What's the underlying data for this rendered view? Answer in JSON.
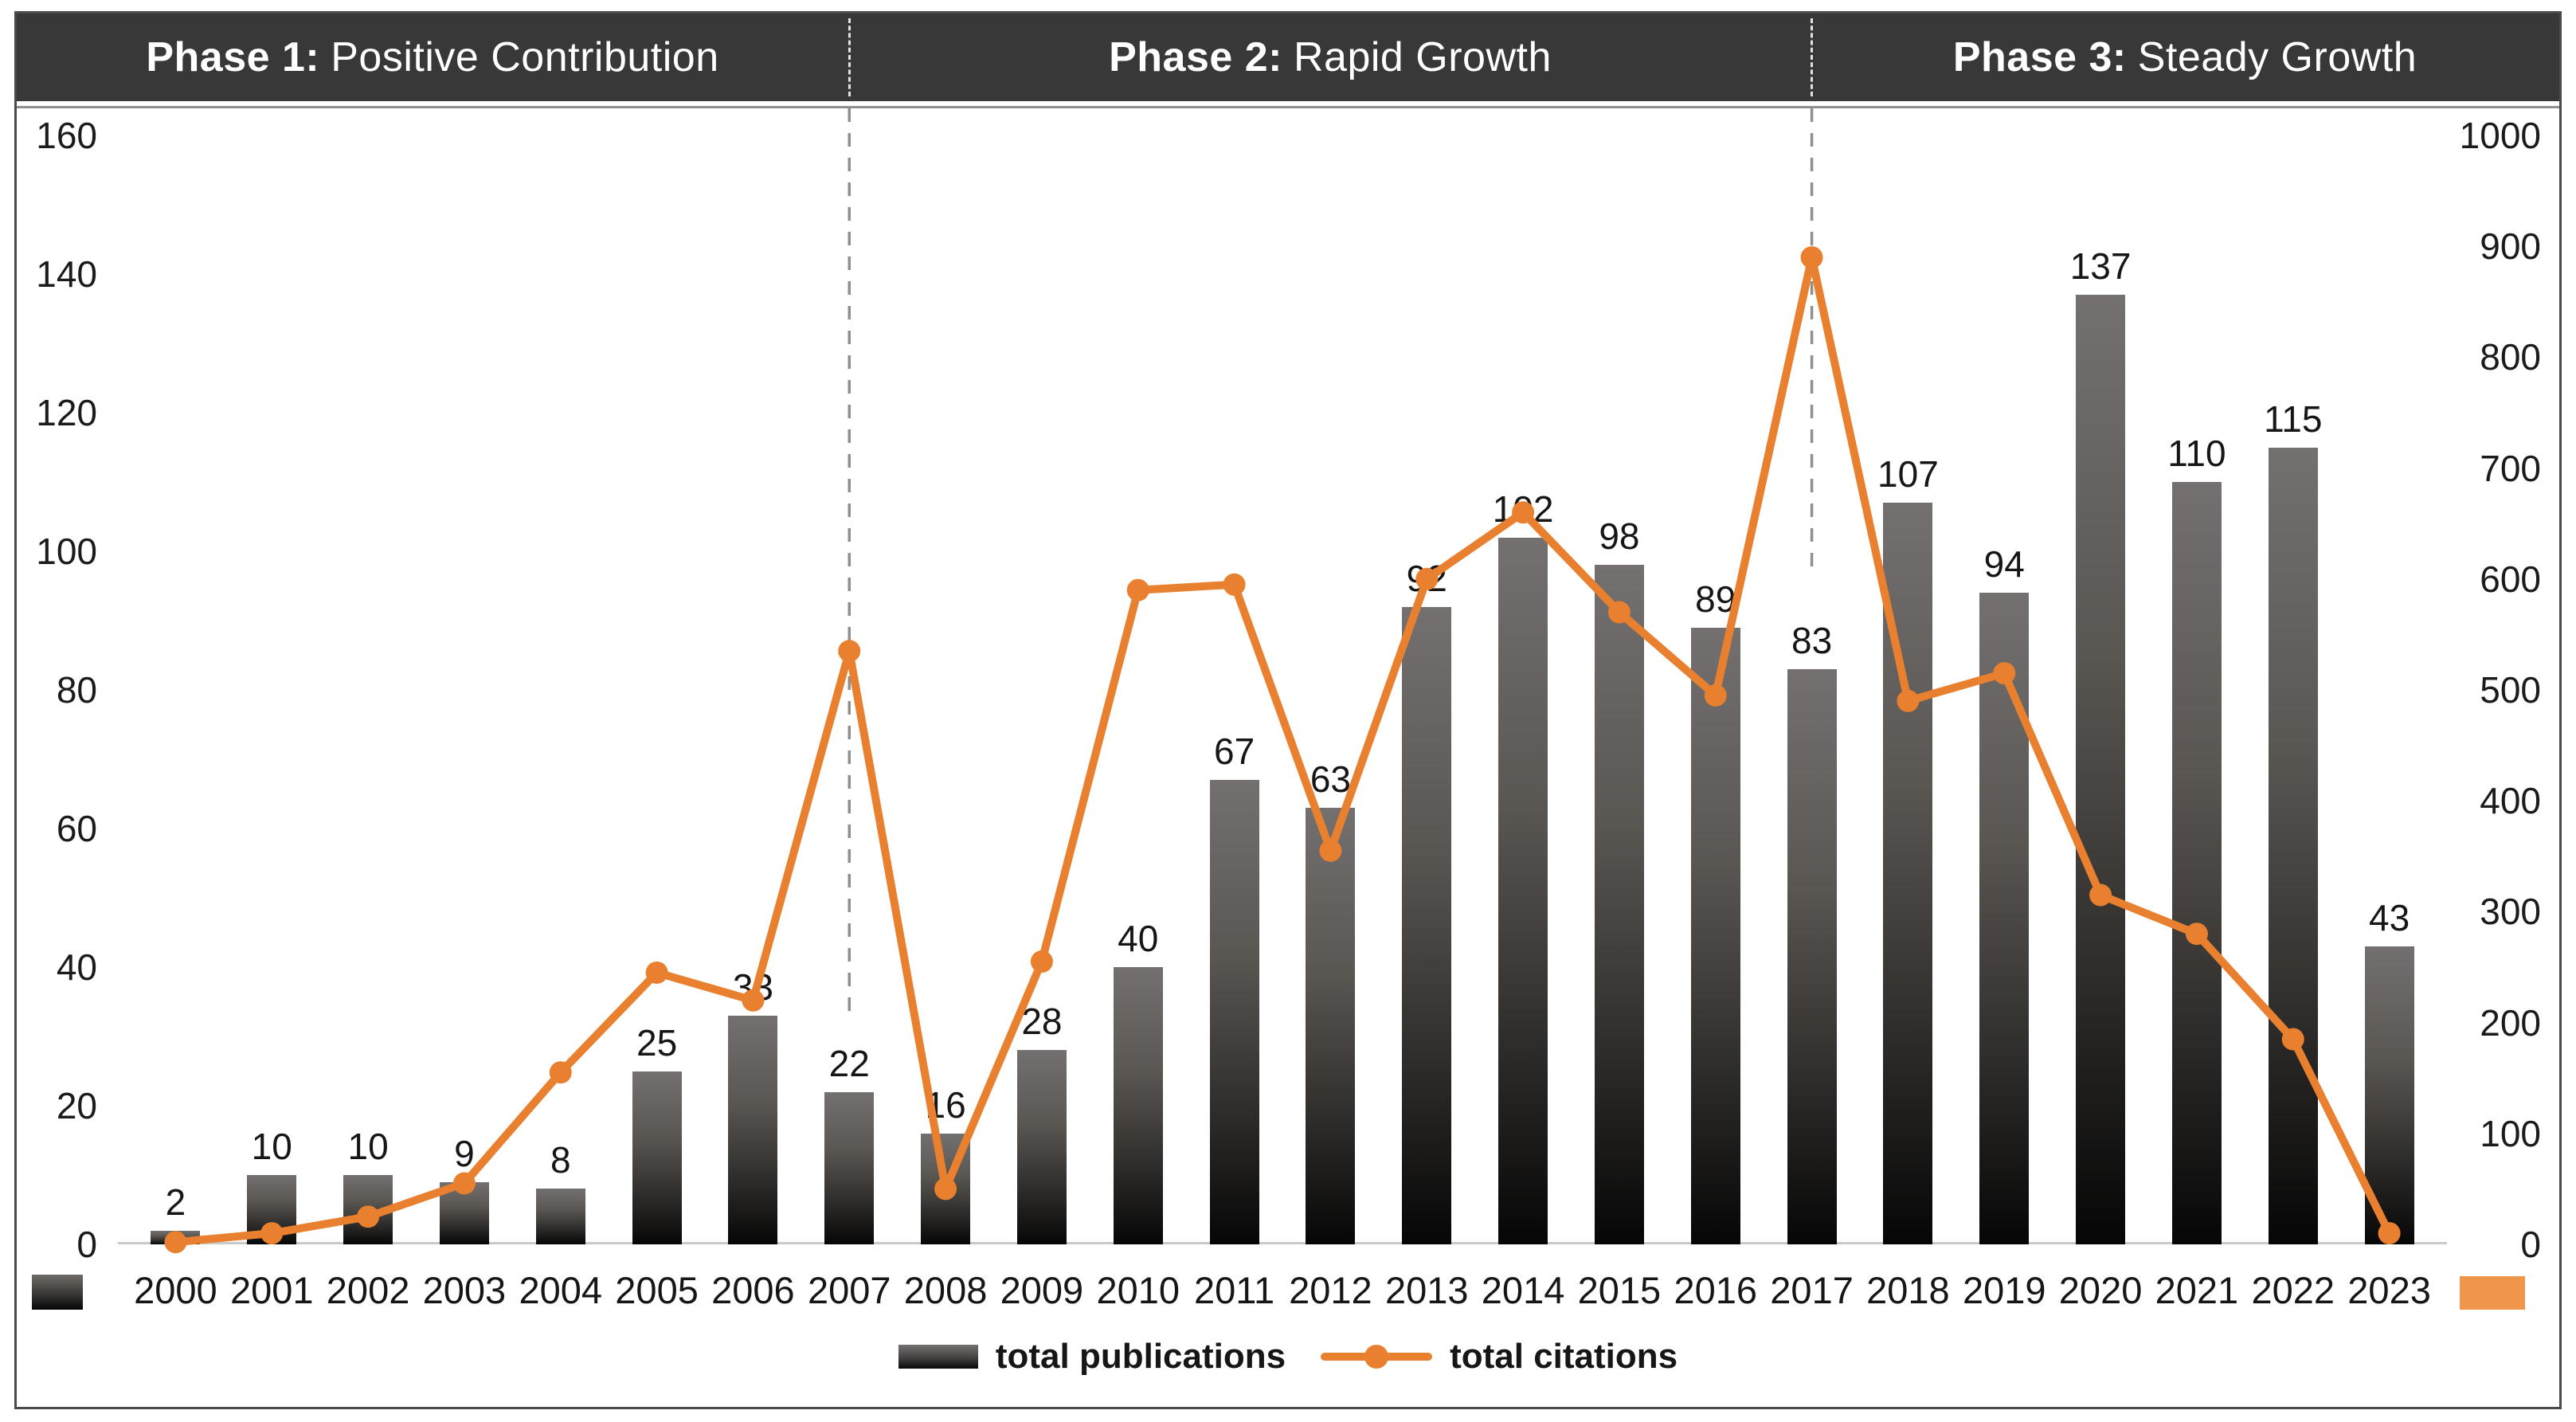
{
  "chart_data": {
    "type": "combo-bar-line",
    "phases": [
      {
        "prefix": "Phase 1:",
        "name": "Positive Contribution"
      },
      {
        "prefix": "Phase 2:",
        "name": "Rapid Growth"
      },
      {
        "prefix": "Phase 3:",
        "name": "Steady Growth"
      }
    ],
    "categories": [
      "2000",
      "2001",
      "2002",
      "2003",
      "2004",
      "2005",
      "2006",
      "2007",
      "2008",
      "2009",
      "2010",
      "2011",
      "2012",
      "2013",
      "2014",
      "2015",
      "2016",
      "2017",
      "2018",
      "2019",
      "2020",
      "2021",
      "2022",
      "2023"
    ],
    "series": [
      {
        "name": "total publications",
        "type": "bar",
        "axis": "left",
        "values": [
          2,
          10,
          10,
          9,
          8,
          25,
          33,
          22,
          16,
          28,
          40,
          67,
          63,
          92,
          102,
          98,
          89,
          83,
          107,
          94,
          137,
          110,
          115,
          43
        ]
      },
      {
        "name": "total citations",
        "type": "line",
        "axis": "right",
        "values": [
          2,
          10,
          25,
          55,
          155,
          245,
          220,
          535,
          50,
          255,
          590,
          595,
          355,
          600,
          660,
          570,
          495,
          890,
          490,
          515,
          315,
          280,
          185,
          10
        ]
      }
    ],
    "left_axis": {
      "min": 0,
      "max": 160,
      "step": 20,
      "ticks": [
        0,
        20,
        40,
        60,
        80,
        100,
        120,
        140,
        160
      ]
    },
    "right_axis": {
      "min": 0,
      "max": 1000,
      "step": 100,
      "ticks": [
        0,
        100,
        200,
        300,
        400,
        500,
        600,
        700,
        800,
        900,
        1000
      ]
    },
    "phase_boundaries": {
      "first_after": "2007",
      "second_after": "2017"
    },
    "legend": {
      "publications": "total publications",
      "citations": "total citations"
    },
    "layout_hints": {
      "gridlines": false,
      "legend_position": "bottom-center",
      "bar_labels": "above-bars"
    },
    "colors": {
      "header_bg": "#383838",
      "header_text": "#ffffff",
      "orange_line": "#E8802F",
      "orange_swatch": "#F0954C",
      "bar_top": "#747070",
      "bar_bottom": "#060606",
      "axis_line": "#C9C9C9",
      "dashed_line": "#8f8f8f",
      "text": "#161616",
      "frame": "#4a4a4a"
    }
  }
}
